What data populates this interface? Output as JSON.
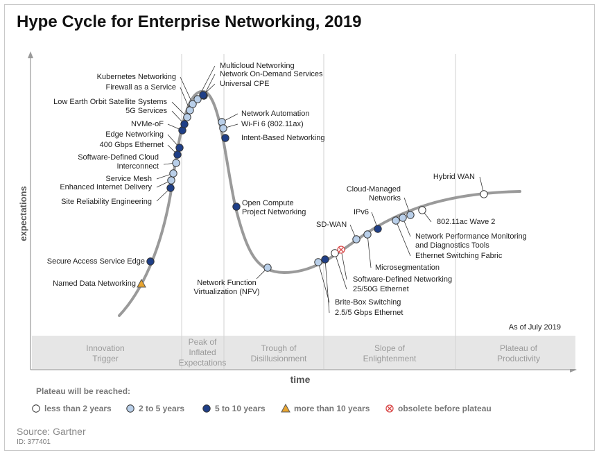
{
  "title": "Hype Cycle for Enterprise Networking, 2019",
  "y_axis_label": "expectations",
  "x_axis_label": "time",
  "as_of": "As of July 2019",
  "phases": [
    {
      "id": "innovation",
      "lines": [
        "Innovation",
        "Trigger"
      ]
    },
    {
      "id": "peak",
      "lines": [
        "Peak of",
        "Inflated",
        "Expectations"
      ]
    },
    {
      "id": "trough",
      "lines": [
        "Trough of",
        "Disillusionment"
      ]
    },
    {
      "id": "slope",
      "lines": [
        "Slope of",
        "Enlightenment"
      ]
    },
    {
      "id": "plateau",
      "lines": [
        "Plateau of",
        "Productivity"
      ]
    }
  ],
  "legend": {
    "title": "Plateau will be reached:",
    "items": [
      {
        "key": "lt2",
        "label": "less than 2 years"
      },
      {
        "key": "2to5",
        "label": "2 to 5 years"
      },
      {
        "key": "5to10",
        "label": "5 to 10 years"
      },
      {
        "key": "gt10",
        "label": "more than 10 years"
      },
      {
        "key": "obsolete",
        "label": "obsolete before plateau"
      }
    ]
  },
  "colors": {
    "lt2": "#ffffff",
    "2to5": "#b9cfe9",
    "5to10": "#1f3f87",
    "gt10": "#e8a531",
    "obsolete": "#d94a4a",
    "curve": "#9a9a9a",
    "phase_band": "#e6e6e6"
  },
  "technologies": [
    {
      "name": "Named Data Networking",
      "category": "gt10"
    },
    {
      "name": "Secure Access Service Edge",
      "category": "5to10"
    },
    {
      "name": "Site Reliability Engineering",
      "category": "5to10"
    },
    {
      "name": "Enhanced Internet Delivery",
      "category": "2to5"
    },
    {
      "name": "Service Mesh",
      "category": "2to5"
    },
    {
      "name": "Software-Defined Cloud Interconnect",
      "category": "2to5"
    },
    {
      "name": "400 Gbps Ethernet",
      "category": "5to10"
    },
    {
      "name": "Edge Networking",
      "category": "5to10"
    },
    {
      "name": "NVMe-oF",
      "category": "5to10"
    },
    {
      "name": "5G Services",
      "category": "5to10"
    },
    {
      "name": "Low Earth Orbit Satellite Systems",
      "category": "2to5"
    },
    {
      "name": "Firewall as a Service",
      "category": "2to5"
    },
    {
      "name": "Kubernetes Networking",
      "category": "2to5"
    },
    {
      "name": "Multicloud Networking",
      "category": "2to5"
    },
    {
      "name": "Network On-Demand Services",
      "category": "5to10"
    },
    {
      "name": "Universal CPE",
      "category": "5to10"
    },
    {
      "name": "Network Automation",
      "category": "2to5"
    },
    {
      "name": "Wi-Fi 6 (802.11ax)",
      "category": "2to5"
    },
    {
      "name": "Intent-Based Networking",
      "category": "5to10"
    },
    {
      "name": "Open Compute Project Networking",
      "category": "5to10"
    },
    {
      "name": "Network Function Virtualization (NFV)",
      "category": "2to5"
    },
    {
      "name": "Brite-Box Switching",
      "category": "2to5"
    },
    {
      "name": "2.5/5 Gbps Ethernet",
      "category": "5to10"
    },
    {
      "name": "25/50G Ethernet",
      "category": "lt2"
    },
    {
      "name": "Software-Defined Networking",
      "category": "obsolete"
    },
    {
      "name": "SD-WAN",
      "category": "2to5"
    },
    {
      "name": "Microsegmentation",
      "category": "2to5"
    },
    {
      "name": "IPv6",
      "category": "5to10"
    },
    {
      "name": "Ethernet Switching Fabric",
      "category": "2to5"
    },
    {
      "name": "Network Performance Monitoring and Diagnostics Tools",
      "category": "2to5"
    },
    {
      "name": "Cloud-Managed Networks",
      "category": "2to5"
    },
    {
      "name": "802.11ac Wave 2",
      "category": "lt2"
    },
    {
      "name": "Hybrid WAN",
      "category": "lt2"
    }
  ],
  "source": "Source: Gartner",
  "id": "ID: 377401"
}
